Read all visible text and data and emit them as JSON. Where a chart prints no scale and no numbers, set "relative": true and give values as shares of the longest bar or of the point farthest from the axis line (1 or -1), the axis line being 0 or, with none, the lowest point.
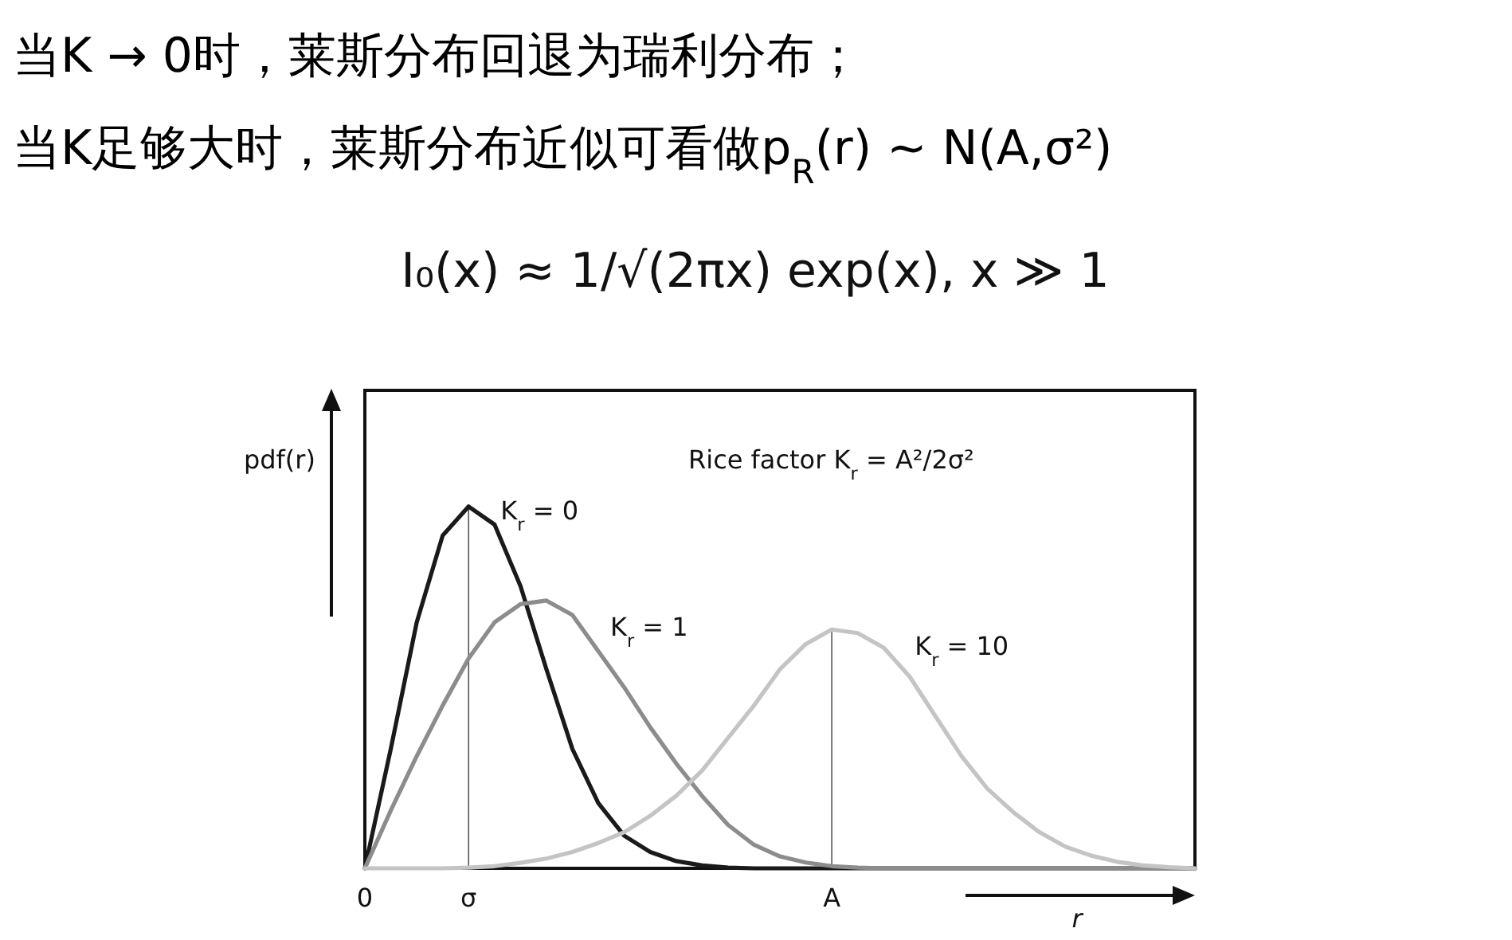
{
  "chart_data": {
    "type": "line",
    "relative": true,
    "title": "当K → 0时，莱斯分布回退为瑞利分布；",
    "subtitle": "当K足够大时，莱斯分布近似可看做p$_{R}$(r) ~ N(A,σ²)",
    "annotations": [
      "I₀(x) ≈ 1/√(2πx) exp(x), x ≫ 1",
      "Rice factor  K$_{r}$ = A²/2σ²"
    ],
    "xlabel": "r",
    "ylabel": "pdf(r)",
    "categories": [
      "0",
      null,
      null,
      null,
      "σ",
      null,
      null,
      null,
      null,
      null,
      null,
      null,
      null,
      null,
      null,
      null,
      null,
      null,
      "A",
      null,
      null,
      null,
      null,
      null,
      null,
      null,
      null,
      null,
      null,
      null,
      null,
      null,
      null
    ],
    "tick_labels": "x",
    "line_style": "solid",
    "ref_lines": [
      {
        "axis": "x",
        "value": "σ",
        "color": "#555555"
      },
      {
        "axis": "x",
        "value": "A",
        "color": "#555555"
      }
    ],
    "series": [
      {
        "name": "K$_{r}$ = 0",
        "color": "#1a1a1a",
        "values": [
          0,
          0.33,
          0.68,
          0.92,
          1,
          0.95,
          0.78,
          0.55,
          0.33,
          0.18,
          0.09,
          0.045,
          0.02,
          0.008,
          0.002,
          0,
          0,
          0,
          0,
          0,
          0,
          0,
          0,
          0,
          0,
          0,
          0,
          0,
          0,
          0,
          0,
          0,
          0
        ]
      },
      {
        "name": "K$_{r}$ = 1",
        "color": "#8c8c8c",
        "values": [
          0,
          0.16,
          0.31,
          0.45,
          0.58,
          0.68,
          0.73,
          0.74,
          0.7,
          0.6,
          0.5,
          0.39,
          0.29,
          0.2,
          0.12,
          0.065,
          0.033,
          0.016,
          0.006,
          0.002,
          0,
          0,
          0,
          0,
          0,
          0,
          0,
          0,
          0,
          0,
          0,
          0,
          0
        ]
      },
      {
        "name": "K$_{r}$ = 10",
        "color": "#c4c4c4",
        "values": [
          0,
          0,
          0,
          0,
          0.002,
          0.006,
          0.015,
          0.027,
          0.045,
          0.07,
          0.1,
          0.145,
          0.2,
          0.27,
          0.36,
          0.45,
          0.55,
          0.62,
          0.66,
          0.65,
          0.61,
          0.53,
          0.42,
          0.31,
          0.22,
          0.155,
          0.1,
          0.06,
          0.035,
          0.018,
          0.008,
          0.003,
          0
        ]
      }
    ]
  }
}
